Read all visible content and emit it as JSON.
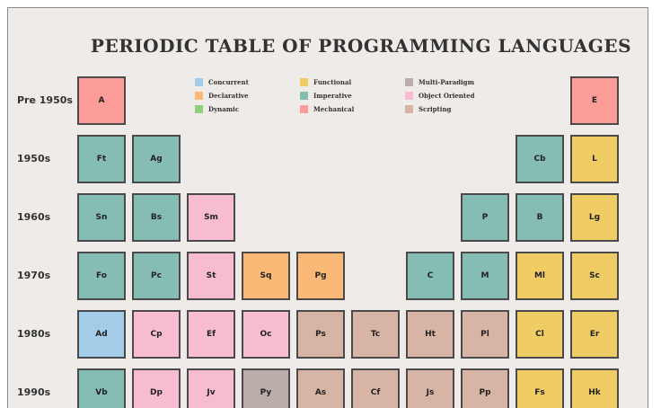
{
  "title": "PERIODIC TABLE OF PROGRAMMING LANGUAGES",
  "categories": {
    "concurrent": {
      "label": "Concurrent",
      "color": "#a4cbe8"
    },
    "declarative": {
      "label": "Declarative",
      "color": "#fbb978"
    },
    "dynamic": {
      "label": "Dynamic",
      "color": "#8ed07c"
    },
    "functional": {
      "label": "Functional",
      "color": "#f0cc64"
    },
    "imperative": {
      "label": "Imperative",
      "color": "#85bcb4"
    },
    "mechanical": {
      "label": "Mechanical",
      "color": "#fc9d9a"
    },
    "multi_paradigm": {
      "label": "Multi-Paradigm",
      "color": "#baaeaa"
    },
    "object_oriented": {
      "label": "Object Oriented",
      "color": "#f8bcd2"
    },
    "scripting": {
      "label": "Scripting",
      "color": "#d8b4a4"
    }
  },
  "legend_order": [
    [
      "concurrent",
      "declarative",
      "dynamic"
    ],
    [
      "functional",
      "imperative",
      "mechanical"
    ],
    [
      "multi_paradigm",
      "object_oriented",
      "scripting"
    ]
  ],
  "rows": [
    {
      "label": "Pre 1950s",
      "cells": [
        {
          "col": 0,
          "symbol": "A",
          "category": "mechanical"
        },
        {
          "col": 9,
          "symbol": "E",
          "category": "mechanical"
        }
      ]
    },
    {
      "label": "1950s",
      "cells": [
        {
          "col": 0,
          "symbol": "Ft",
          "category": "imperative"
        },
        {
          "col": 1,
          "symbol": "Ag",
          "category": "imperative"
        },
        {
          "col": 8,
          "symbol": "Cb",
          "category": "imperative"
        },
        {
          "col": 9,
          "symbol": "L",
          "category": "functional"
        }
      ]
    },
    {
      "label": "1960s",
      "cells": [
        {
          "col": 0,
          "symbol": "Sn",
          "category": "imperative"
        },
        {
          "col": 1,
          "symbol": "Bs",
          "category": "imperative"
        },
        {
          "col": 2,
          "symbol": "Sm",
          "category": "object_oriented"
        },
        {
          "col": 7,
          "symbol": "P",
          "category": "imperative"
        },
        {
          "col": 8,
          "symbol": "B",
          "category": "imperative"
        },
        {
          "col": 9,
          "symbol": "Lg",
          "category": "functional"
        }
      ]
    },
    {
      "label": "1970s",
      "cells": [
        {
          "col": 0,
          "symbol": "Fo",
          "category": "imperative"
        },
        {
          "col": 1,
          "symbol": "Pc",
          "category": "imperative"
        },
        {
          "col": 2,
          "symbol": "St",
          "category": "object_oriented"
        },
        {
          "col": 3,
          "symbol": "Sq",
          "category": "declarative"
        },
        {
          "col": 4,
          "symbol": "Pg",
          "category": "declarative"
        },
        {
          "col": 6,
          "symbol": "C",
          "category": "imperative"
        },
        {
          "col": 7,
          "symbol": "M",
          "category": "imperative"
        },
        {
          "col": 8,
          "symbol": "Ml",
          "category": "functional"
        },
        {
          "col": 9,
          "symbol": "Sc",
          "category": "functional"
        }
      ]
    },
    {
      "label": "1980s",
      "cells": [
        {
          "col": 0,
          "symbol": "Ad",
          "category": "concurrent"
        },
        {
          "col": 1,
          "symbol": "Cp",
          "category": "object_oriented"
        },
        {
          "col": 2,
          "symbol": "Ef",
          "category": "object_oriented"
        },
        {
          "col": 3,
          "symbol": "Oc",
          "category": "object_oriented"
        },
        {
          "col": 4,
          "symbol": "Ps",
          "category": "scripting"
        },
        {
          "col": 5,
          "symbol": "Tc",
          "category": "scripting"
        },
        {
          "col": 6,
          "symbol": "Ht",
          "category": "scripting"
        },
        {
          "col": 7,
          "symbol": "Pl",
          "category": "scripting"
        },
        {
          "col": 8,
          "symbol": "Cl",
          "category": "functional"
        },
        {
          "col": 9,
          "symbol": "Er",
          "category": "functional"
        }
      ]
    },
    {
      "label": "1990s",
      "cells": [
        {
          "col": 0,
          "symbol": "Vb",
          "category": "imperative"
        },
        {
          "col": 1,
          "symbol": "Dp",
          "category": "object_oriented"
        },
        {
          "col": 2,
          "symbol": "Jv",
          "category": "object_oriented"
        },
        {
          "col": 3,
          "symbol": "Py",
          "category": "multi_paradigm"
        },
        {
          "col": 4,
          "symbol": "As",
          "category": "scripting"
        },
        {
          "col": 5,
          "symbol": "Cf",
          "category": "scripting"
        },
        {
          "col": 6,
          "symbol": "Js",
          "category": "scripting"
        },
        {
          "col": 7,
          "symbol": "Pp",
          "category": "scripting"
        },
        {
          "col": 8,
          "symbol": "Fs",
          "category": "functional"
        },
        {
          "col": 9,
          "symbol": "Hk",
          "category": "functional"
        }
      ]
    }
  ]
}
